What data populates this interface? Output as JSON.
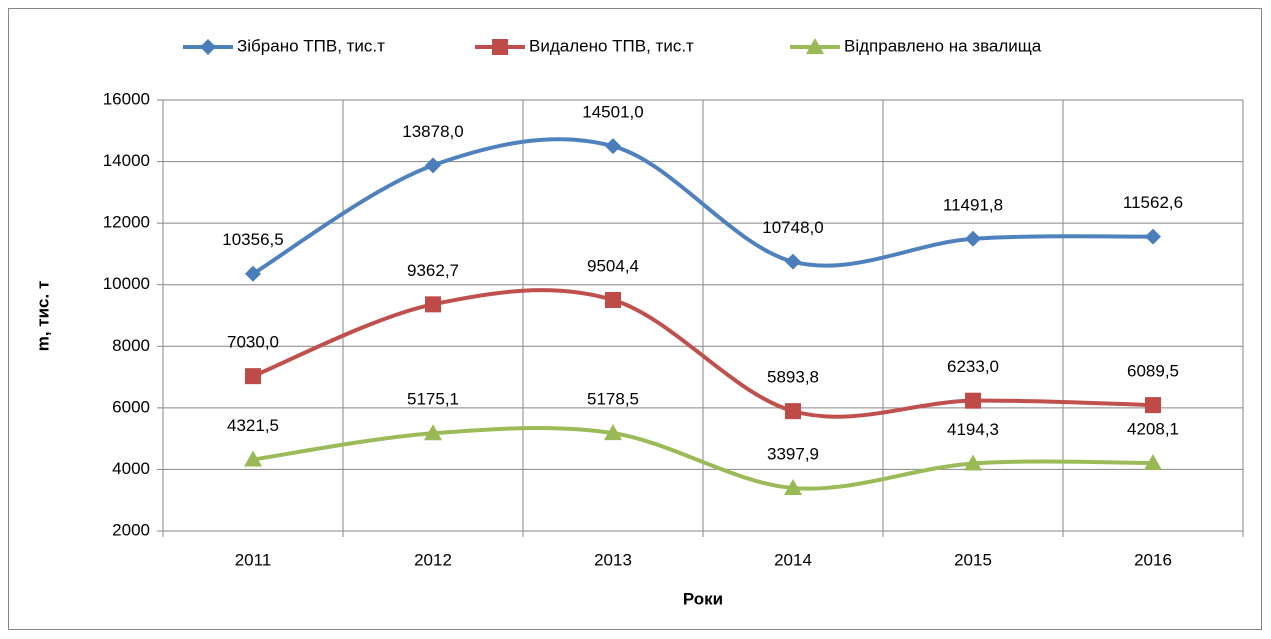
{
  "chart_data": {
    "type": "line",
    "categories": [
      "2011",
      "2012",
      "2013",
      "2014",
      "2015",
      "2016"
    ],
    "series": [
      {
        "name": "Зібрано ТПВ, тис.т",
        "color": "#4a7ebb",
        "marker": "diamond",
        "values": [
          10356.5,
          13878.0,
          14501.0,
          10748.0,
          11491.8,
          11562.6
        ],
        "value_labels": [
          "10356,5",
          "13878,0",
          "14501,0",
          "10748,0",
          "11491,8",
          "11562,6"
        ]
      },
      {
        "name": "Видалено ТПВ, тис.т",
        "color": "#be4b48",
        "marker": "square",
        "values": [
          7030.0,
          9362.7,
          9504.4,
          5893.8,
          6233.0,
          6089.5
        ],
        "value_labels": [
          "7030,0",
          "9362,7",
          "9504,4",
          "5893,8",
          "6233,0",
          "6089,5"
        ]
      },
      {
        "name": "Відправлено на звалища",
        "color": "#98b954",
        "marker": "triangle",
        "values": [
          4321.5,
          5175.1,
          5178.5,
          3397.9,
          4194.3,
          4208.1
        ],
        "value_labels": [
          "4321,5",
          "5175,1",
          "5178,5",
          "3397,9",
          "4194,3",
          "4208,1"
        ]
      }
    ],
    "ylim": [
      2000,
      16000
    ],
    "yticks": [
      2000,
      4000,
      6000,
      8000,
      10000,
      12000,
      14000,
      16000
    ],
    "xlabel": "Роки",
    "ylabel": "m, тис. т",
    "grid": true,
    "smooth": true,
    "legend": "top"
  }
}
